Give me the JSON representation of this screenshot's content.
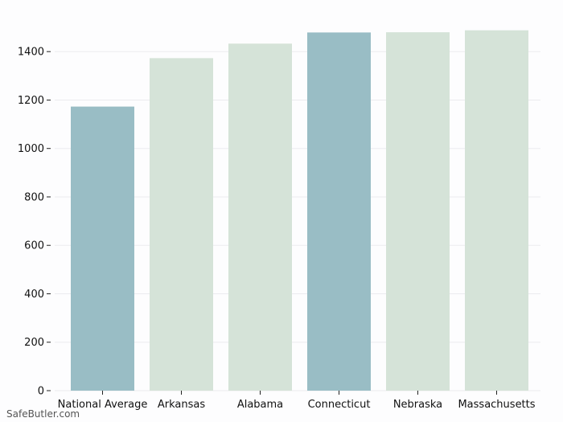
{
  "chart_data": {
    "type": "bar",
    "categories": [
      "National Average",
      "Arkansas",
      "Alabama",
      "Connecticut",
      "Nebraska",
      "Massachusetts"
    ],
    "values": [
      1173,
      1373,
      1433,
      1479,
      1480,
      1488
    ],
    "bar_colors": [
      "#99bdc5",
      "#d5e3d8",
      "#d5e3d8",
      "#99bdc5",
      "#d5e3d8",
      "#d5e3d8"
    ],
    "yticks": [
      0,
      200,
      400,
      600,
      800,
      1000,
      1200,
      1400
    ],
    "ylim": [
      0,
      1560
    ],
    "grid": true,
    "grid_color": "#ebebef",
    "title": "",
    "xlabel": "",
    "ylabel": ""
  },
  "watermark": "SafeButler.com"
}
